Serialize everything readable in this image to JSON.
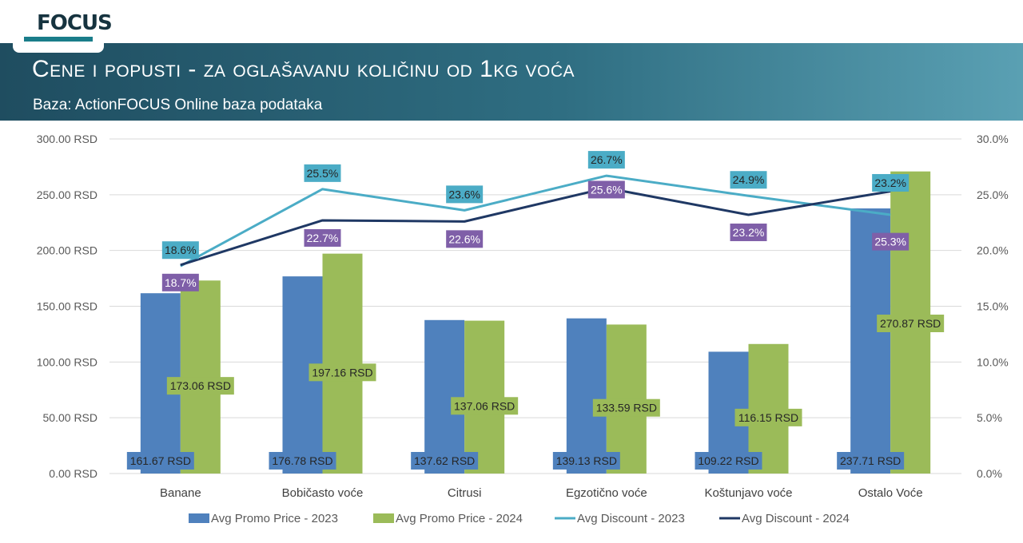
{
  "header": {
    "logo_text": "FOCUS",
    "title": "Cene i popusti  - za oglašavanu količinu od 1kg voća",
    "subtitle": "Baza: ActionFOCUS Online baza podataka"
  },
  "colors": {
    "header_band": "#2a6478",
    "promo_2023": "#4f81bd",
    "promo_2024": "#9bbb59",
    "discount_2023": "#4bacc6",
    "discount_2024": "#1f3864",
    "discount_2024_label_bg": "#7f5fa8",
    "gridline": "#d9d9d9"
  },
  "chart_data": {
    "type": "bar",
    "categories": [
      "Banane",
      "Bobičasto voće",
      "Citrusi",
      "Egzotično voće",
      "Koštunjavo voće",
      "Ostalo Voće"
    ],
    "series": [
      {
        "name": "Avg Promo Price - 2023",
        "kind": "bar",
        "axis": "left",
        "values": [
          161.67,
          176.78,
          137.62,
          139.13,
          109.22,
          237.71
        ],
        "labels": [
          "161.67 RSD",
          "176.78 RSD",
          "137.62 RSD",
          "139.13 RSD",
          "109.22 RSD",
          "237.71 RSD"
        ]
      },
      {
        "name": "Avg Promo Price - 2024",
        "kind": "bar",
        "axis": "left",
        "values": [
          173.06,
          197.16,
          137.06,
          133.59,
          116.15,
          270.87
        ],
        "labels": [
          "173.06 RSD",
          "197.16 RSD",
          "137.06 RSD",
          "133.59 RSD",
          "116.15 RSD",
          "270.87 RSD"
        ]
      },
      {
        "name": "Avg Discount - 2023",
        "kind": "line",
        "axis": "right",
        "values": [
          18.6,
          25.5,
          23.6,
          26.7,
          24.9,
          23.2
        ],
        "labels": [
          "18.6%",
          "25.5%",
          "23.6%",
          "26.7%",
          "24.9%",
          "23.2%"
        ]
      },
      {
        "name": "Avg Discount - 2024",
        "kind": "line",
        "axis": "right",
        "values": [
          18.7,
          22.7,
          22.6,
          25.6,
          23.2,
          25.3
        ],
        "labels": [
          "18.7%",
          "22.7%",
          "22.6%",
          "25.6%",
          "23.2%",
          "25.3%"
        ]
      }
    ],
    "y_left": {
      "lim": [
        0,
        300
      ],
      "ticks": [
        "0.00 RSD",
        "50.00 RSD",
        "100.00 RSD",
        "150.00 RSD",
        "200.00 RSD",
        "250.00 RSD",
        "300.00 RSD"
      ]
    },
    "y_right": {
      "lim": [
        0,
        30
      ],
      "ticks": [
        "0.0%",
        "5.0%",
        "10.0%",
        "15.0%",
        "20.0%",
        "25.0%",
        "30.0%"
      ]
    },
    "grid": true,
    "legend_position": "bottom"
  }
}
